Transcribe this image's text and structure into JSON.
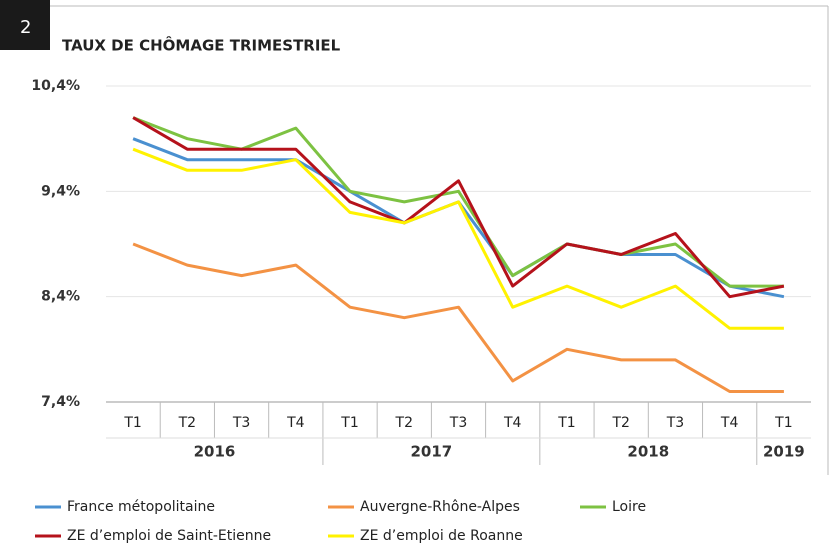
{
  "badge": "2",
  "chart_data": {
    "type": "line",
    "title": "TAUX DE CHÔMAGE TRIMESTRIEL",
    "year_groups": [
      {
        "label": "2016",
        "quarters": [
          "T1",
          "T2",
          "T3",
          "T4"
        ]
      },
      {
        "label": "2017",
        "quarters": [
          "T1",
          "T2",
          "T3",
          "T4"
        ]
      },
      {
        "label": "2018",
        "quarters": [
          "T1",
          "T2",
          "T3",
          "T4"
        ]
      },
      {
        "label": "2019",
        "quarters": [
          "T1"
        ]
      }
    ],
    "ylim": [
      7.4,
      10.4
    ],
    "yticks": [
      {
        "value": 7.4,
        "label": "7,4%"
      },
      {
        "value": 8.4,
        "label": "8,4%"
      },
      {
        "value": 9.4,
        "label": "9,4%"
      },
      {
        "value": 10.4,
        "label": "10,4%"
      }
    ],
    "grid": true,
    "series": [
      {
        "name": "France métopolitaine",
        "color": "#4a90d0",
        "values": [
          9.9,
          9.7,
          9.7,
          9.7,
          9.4,
          9.1,
          9.3,
          8.6,
          8.9,
          8.8,
          8.8,
          8.5,
          8.4
        ]
      },
      {
        "name": "Auvergne-Rhône-Alpes",
        "color": "#f39244",
        "values": [
          8.9,
          8.7,
          8.6,
          8.7,
          8.3,
          8.2,
          8.3,
          7.6,
          7.9,
          7.8,
          7.8,
          7.5,
          7.5
        ]
      },
      {
        "name": "Loire",
        "color": "#7dc242",
        "values": [
          10.1,
          9.9,
          9.8,
          10.0,
          9.4,
          9.3,
          9.4,
          8.6,
          8.9,
          8.8,
          8.9,
          8.5,
          8.5
        ]
      },
      {
        "name": "ZE d’emploi de Saint-Etienne",
        "color": "#b5121b",
        "values": [
          10.1,
          9.8,
          9.8,
          9.8,
          9.3,
          9.1,
          9.5,
          8.5,
          8.9,
          8.8,
          9.0,
          8.4,
          8.5
        ]
      },
      {
        "name": "ZE d’emploi de Roanne",
        "color": "#fff200",
        "values": [
          9.8,
          9.6,
          9.6,
          9.7,
          9.2,
          9.1,
          9.3,
          8.3,
          8.5,
          8.3,
          8.5,
          8.1,
          8.1
        ]
      }
    ]
  }
}
